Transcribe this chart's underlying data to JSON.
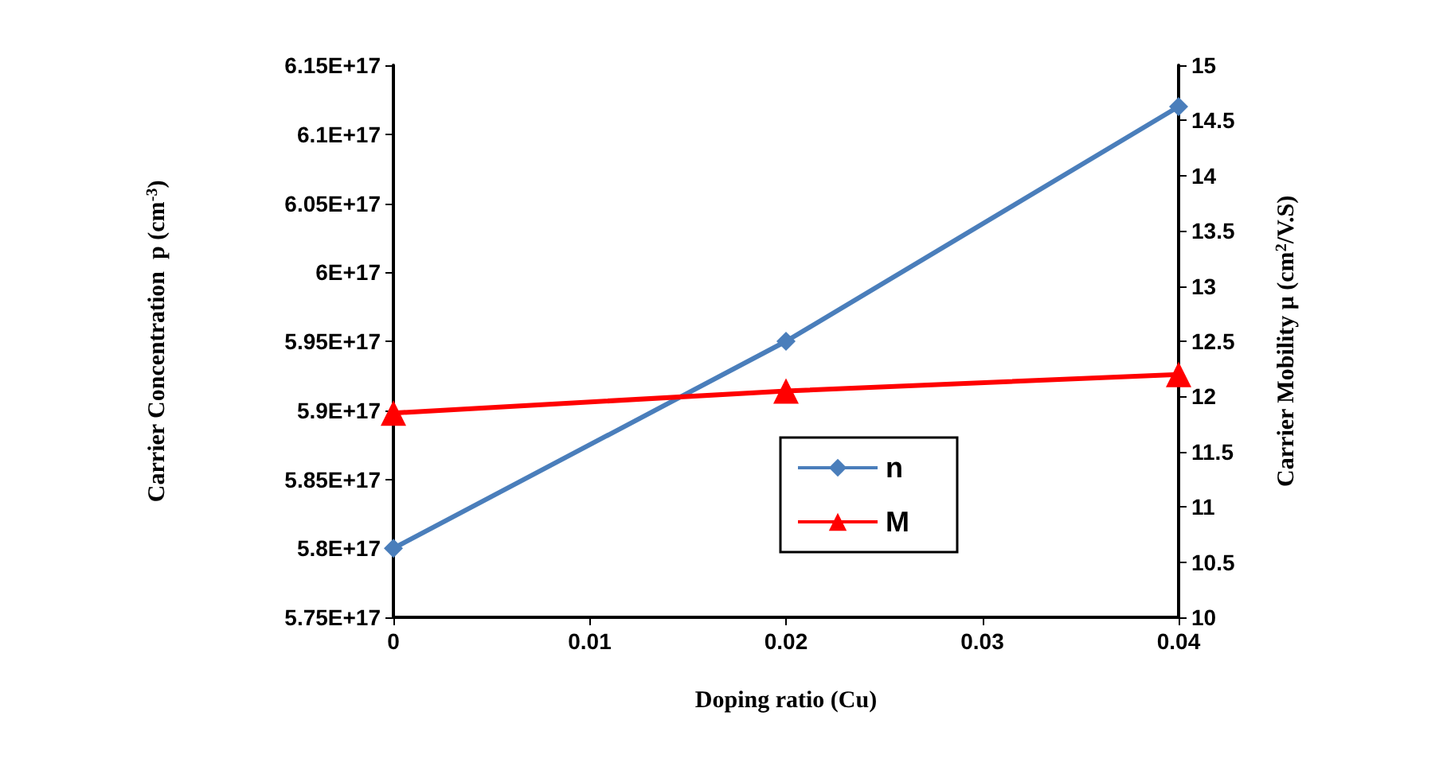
{
  "chart_data": {
    "type": "line",
    "xlabel": "Doping ratio (Cu)",
    "ylabel": "Carrier Concentration  p (cm$^{-3}$)",
    "y2label": "Carrier Mobility μ (cm$^{2}$/V.S)",
    "x": [
      0,
      0.02,
      0.04
    ],
    "xlim": [
      0,
      0.04
    ],
    "xticks": [
      0,
      0.01,
      0.02,
      0.03,
      0.04
    ],
    "ylim": [
      5.75e+17,
      6.15e+17
    ],
    "yticks": [
      {
        "value": 5.75e+17,
        "label": "5.75E+17"
      },
      {
        "value": 5.8e+17,
        "label": "5.8E+17"
      },
      {
        "value": 5.85e+17,
        "label": "5.85E+17"
      },
      {
        "value": 5.9e+17,
        "label": "5.9E+17"
      },
      {
        "value": 5.95e+17,
        "label": "5.95E+17"
      },
      {
        "value": 6e+17,
        "label": "6E+17"
      },
      {
        "value": 6.05e+17,
        "label": "6.05E+17"
      },
      {
        "value": 6.1e+17,
        "label": "6.1E+17"
      },
      {
        "value": 6.15e+17,
        "label": "6.15E+17"
      }
    ],
    "y2lim": [
      10,
      15
    ],
    "y2ticks": [
      10,
      10.5,
      11,
      11.5,
      12,
      12.5,
      13,
      13.5,
      14,
      14.5,
      15
    ],
    "series": [
      {
        "name": "n",
        "color": "#4a7ebb",
        "marker": "diamond",
        "values": [
          5.8e+17,
          5.95e+17,
          6.12e+17
        ]
      },
      {
        "name": "M",
        "color": "#ff0000",
        "marker": "triangle",
        "axis": "y2",
        "values": [
          11.85,
          12.05,
          12.2
        ]
      }
    ],
    "legend": "bottom",
    "grid": false
  }
}
